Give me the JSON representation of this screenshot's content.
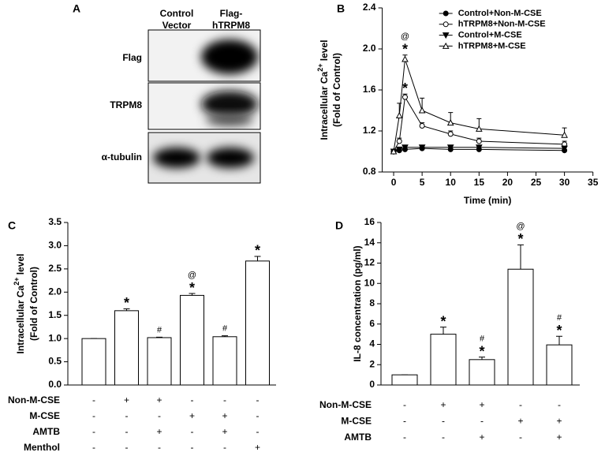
{
  "blot": {
    "label": "A",
    "lanes": [
      [
        "Control",
        "Vector"
      ],
      [
        "Flag-",
        "hTRPM8"
      ]
    ],
    "rows": [
      "Flag",
      "TRPM8",
      "α-tubulin"
    ]
  },
  "chart_data": [
    {
      "type": "line",
      "label": "B",
      "xlabel": "Time (min)",
      "ylabel": [
        "Intracellular Ca",
        "2+",
        " level"
      ],
      "ylabel2": "(Fold of Control)",
      "x": [
        0,
        1,
        2,
        5,
        10,
        15,
        30
      ],
      "xlim": [
        -2,
        35
      ],
      "xticks": [
        0,
        5,
        10,
        15,
        20,
        25,
        30,
        35
      ],
      "ylim": [
        0.8,
        2.4
      ],
      "yticks": [
        0.8,
        1.2,
        1.6,
        {
          "value": 2,
          "label": "2.0"
        },
        2.4
      ],
      "legend": "upper right",
      "series": [
        {
          "name": "Control+Non-M-CSE",
          "marker": "circle-filled",
          "color": "#000000",
          "values": [
            1.0,
            1.01,
            1.02,
            1.03,
            1.02,
            1.02,
            1.01
          ],
          "errors": [
            0.01,
            0.01,
            0.01,
            0.01,
            0.01,
            0.01,
            0.01
          ],
          "annotations": [
            null,
            null,
            null,
            null,
            null,
            null,
            null
          ]
        },
        {
          "name": "hTRPM8+Non-M-CSE",
          "marker": "circle-open",
          "color": "#000000",
          "values": [
            1.0,
            1.1,
            1.53,
            1.25,
            1.17,
            1.1,
            1.07
          ],
          "errors": [
            0.01,
            0.03,
            0.03,
            0.03,
            0.03,
            0.03,
            0.03
          ],
          "annotations": [
            null,
            null,
            [
              "*"
            ],
            null,
            null,
            null,
            null
          ]
        },
        {
          "name": "Control+M-CSE",
          "marker": "triangle-down-filled",
          "color": "#000000",
          "values": [
            1.0,
            1.02,
            1.04,
            1.04,
            1.04,
            1.04,
            1.03
          ],
          "errors": [
            0.01,
            0.01,
            0.01,
            0.01,
            0.01,
            0.01,
            0.01
          ],
          "annotations": [
            null,
            null,
            null,
            null,
            null,
            null,
            null
          ]
        },
        {
          "name": "hTRPM8+M-CSE",
          "marker": "triangle-up-open",
          "color": "#000000",
          "values": [
            1.0,
            1.35,
            1.9,
            1.4,
            1.28,
            1.22,
            1.16
          ],
          "errors": [
            0.01,
            0.12,
            0.04,
            0.12,
            0.1,
            0.1,
            0.07
          ],
          "annotations": [
            null,
            null,
            [
              "*",
              "@"
            ],
            null,
            null,
            null,
            null
          ]
        }
      ]
    },
    {
      "type": "bar",
      "label": "C",
      "ylabel": [
        "Intracellular Ca",
        "2+",
        " level"
      ],
      "ylabel2": "(Fold of Control)",
      "categories": [
        null,
        null,
        null,
        null,
        null,
        null
      ],
      "values": [
        1.0,
        1.6,
        1.02,
        1.93,
        1.04,
        2.67
      ],
      "errors": [
        0.0,
        0.04,
        0.01,
        0.04,
        0.02,
        0.1
      ],
      "annotations": [
        null,
        [
          "*"
        ],
        [
          "#"
        ],
        [
          "*",
          "@"
        ],
        [
          "#"
        ],
        [
          "*"
        ]
      ],
      "ylim": [
        0,
        3.5
      ],
      "yticks": [
        {
          "value": 0,
          "label": "0.0"
        },
        0.5,
        {
          "value": 1,
          "label": "1.0"
        },
        1.5,
        {
          "value": 2,
          "label": "2.0"
        },
        2.5,
        {
          "value": 3,
          "label": "3.0"
        },
        3.5
      ],
      "treatments": [
        {
          "label": "Non-M-CSE",
          "signs": [
            "-",
            "+",
            "+",
            "-",
            "-",
            "-"
          ]
        },
        {
          "label": "M-CSE",
          "signs": [
            "-",
            "-",
            "-",
            "+",
            "+",
            "-"
          ]
        },
        {
          "label": "AMTB",
          "signs": [
            "-",
            "-",
            "+",
            "-",
            "+",
            "-"
          ]
        },
        {
          "label": "Menthol",
          "signs": [
            "-",
            "-",
            "-",
            "-",
            "-",
            "+"
          ]
        }
      ]
    },
    {
      "type": "bar",
      "label": "D",
      "ylabel": [
        "IL-8 concentration (pg/ml)"
      ],
      "categories": [
        null,
        null,
        null,
        null,
        null
      ],
      "values": [
        1.0,
        5.0,
        2.5,
        11.4,
        3.95
      ],
      "errors": [
        0.0,
        0.7,
        0.25,
        2.4,
        0.85
      ],
      "annotations": [
        null,
        [
          "*"
        ],
        [
          "*",
          "#"
        ],
        [
          "*",
          "@"
        ],
        [
          "*",
          "#"
        ]
      ],
      "ylim": [
        0,
        16
      ],
      "yticks": [
        0,
        2,
        4,
        6,
        8,
        10,
        12,
        14,
        16
      ],
      "treatments": [
        {
          "label": "Non-M-CSE",
          "signs": [
            "-",
            "+",
            "+",
            "-",
            "-"
          ]
        },
        {
          "label": "M-CSE",
          "signs": [
            "-",
            "-",
            "-",
            "+",
            "+"
          ]
        },
        {
          "label": "AMTB",
          "signs": [
            "-",
            "-",
            "+",
            "-",
            "+"
          ]
        }
      ]
    }
  ]
}
